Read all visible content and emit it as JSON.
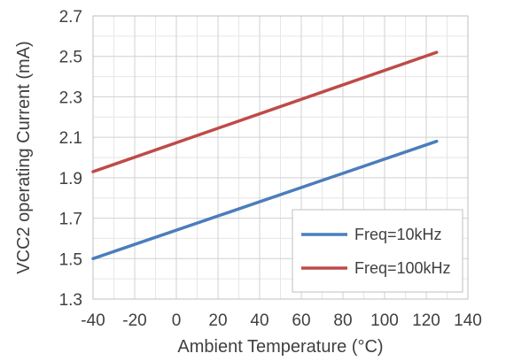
{
  "chart_data": {
    "type": "line",
    "title": "",
    "xlabel": "Ambient Temperature (°C)",
    "ylabel": "VCC2 operating Current (mA)",
    "xlim": [
      -40,
      140
    ],
    "ylim": [
      1.3,
      2.7
    ],
    "x_ticks": [
      -40,
      -20,
      0,
      20,
      40,
      60,
      80,
      100,
      120,
      140
    ],
    "x_tick_labels": [
      "-40",
      "-20",
      "0",
      "20",
      "40",
      "60",
      "80",
      "100",
      "120",
      "140"
    ],
    "y_ticks": [
      1.3,
      1.5,
      1.7,
      1.9,
      2.1,
      2.3,
      2.5,
      2.7
    ],
    "y_tick_labels": [
      "1.3",
      "1.5",
      "1.7",
      "1.9",
      "2.1",
      "2.3",
      "2.5",
      "2.7"
    ],
    "grid": true,
    "legend_position": "bottom-right",
    "series": [
      {
        "name": "Freq=10kHz",
        "color": "#4a7ebb",
        "x": [
          -40,
          125
        ],
        "y": [
          1.5,
          2.08
        ]
      },
      {
        "name": "Freq=100kHz",
        "color": "#be4b48",
        "x": [
          -40,
          125
        ],
        "y": [
          1.93,
          2.52
        ]
      }
    ]
  }
}
